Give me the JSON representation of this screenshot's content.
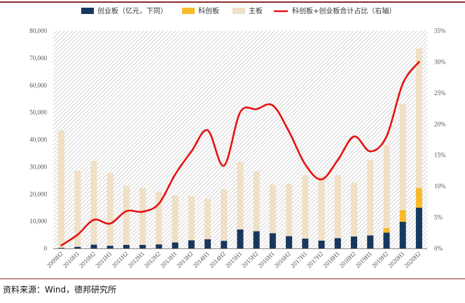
{
  "source_note": "资料来源：Wind，德邦研究所",
  "colors": {
    "gem": "#17375e",
    "star": "#f8b92a",
    "main": "#efe0c6",
    "ratio": "#e5130f",
    "rule": "#8a2a2a"
  },
  "chart_data": {
    "type": "bar",
    "stacked": true,
    "categories": [
      "2009H2",
      "2010H1",
      "2010H2",
      "2011H1",
      "2011H2",
      "2012H1",
      "2012H2",
      "2013H1",
      "2013H2",
      "2014H1",
      "2014H2",
      "2015H1",
      "2015H2",
      "2016H1",
      "2016H2",
      "2017H1",
      "2017H2",
      "2018H1",
      "2018H2",
      "2019H1",
      "2019H2",
      "2020H1",
      "2020H2"
    ],
    "series": [
      {
        "name": "创业板（亿元，下同）",
        "kind": "bar",
        "color_key": "gem",
        "values": [
          200,
          600,
          1400,
          1000,
          1300,
          1300,
          1500,
          2200,
          3000,
          3400,
          2800,
          7000,
          6300,
          5600,
          4500,
          3600,
          2900,
          3800,
          4400,
          4800,
          5800,
          9800,
          15000
        ]
      },
      {
        "name": "科创板",
        "kind": "bar",
        "color_key": "star",
        "values": [
          0,
          0,
          0,
          0,
          0,
          0,
          0,
          0,
          0,
          0,
          0,
          0,
          0,
          0,
          0,
          0,
          0,
          0,
          0,
          0,
          1700,
          4300,
          7200
        ]
      },
      {
        "name": "主板",
        "kind": "bar",
        "color_key": "main",
        "values": [
          43300,
          27900,
          30800,
          26800,
          21700,
          20900,
          19300,
          17300,
          16200,
          14800,
          19000,
          24700,
          22000,
          17900,
          19200,
          23400,
          23600,
          23200,
          19800,
          27700,
          30500,
          38900,
          51300
        ]
      },
      {
        "name": "科创板+创业板合计占比（右轴）",
        "kind": "line",
        "axis": "right",
        "color_key": "ratio",
        "values": [
          0.5,
          2.2,
          4.6,
          4.0,
          6.0,
          5.9,
          7.2,
          11.9,
          15.6,
          19.0,
          13.3,
          21.9,
          22.4,
          23.0,
          18.8,
          13.5,
          11.1,
          14.2,
          18.0,
          15.6,
          18.0,
          26.5,
          30.0
        ]
      }
    ],
    "y_left": {
      "min": 0,
      "max": 80000,
      "step": 10000,
      "tick_labels": [
        "0",
        "10,000",
        "20,000",
        "30,000",
        "40,000",
        "50,000",
        "60,000",
        "70,000",
        "80,000"
      ]
    },
    "y_right": {
      "min": 0,
      "max": 35,
      "step": 5,
      "tick_labels": [
        "0%",
        "5%",
        "10%",
        "15%",
        "20%",
        "25%",
        "30%",
        "35%"
      ]
    },
    "legend_position": "top",
    "background": "diagonal-hatch"
  }
}
